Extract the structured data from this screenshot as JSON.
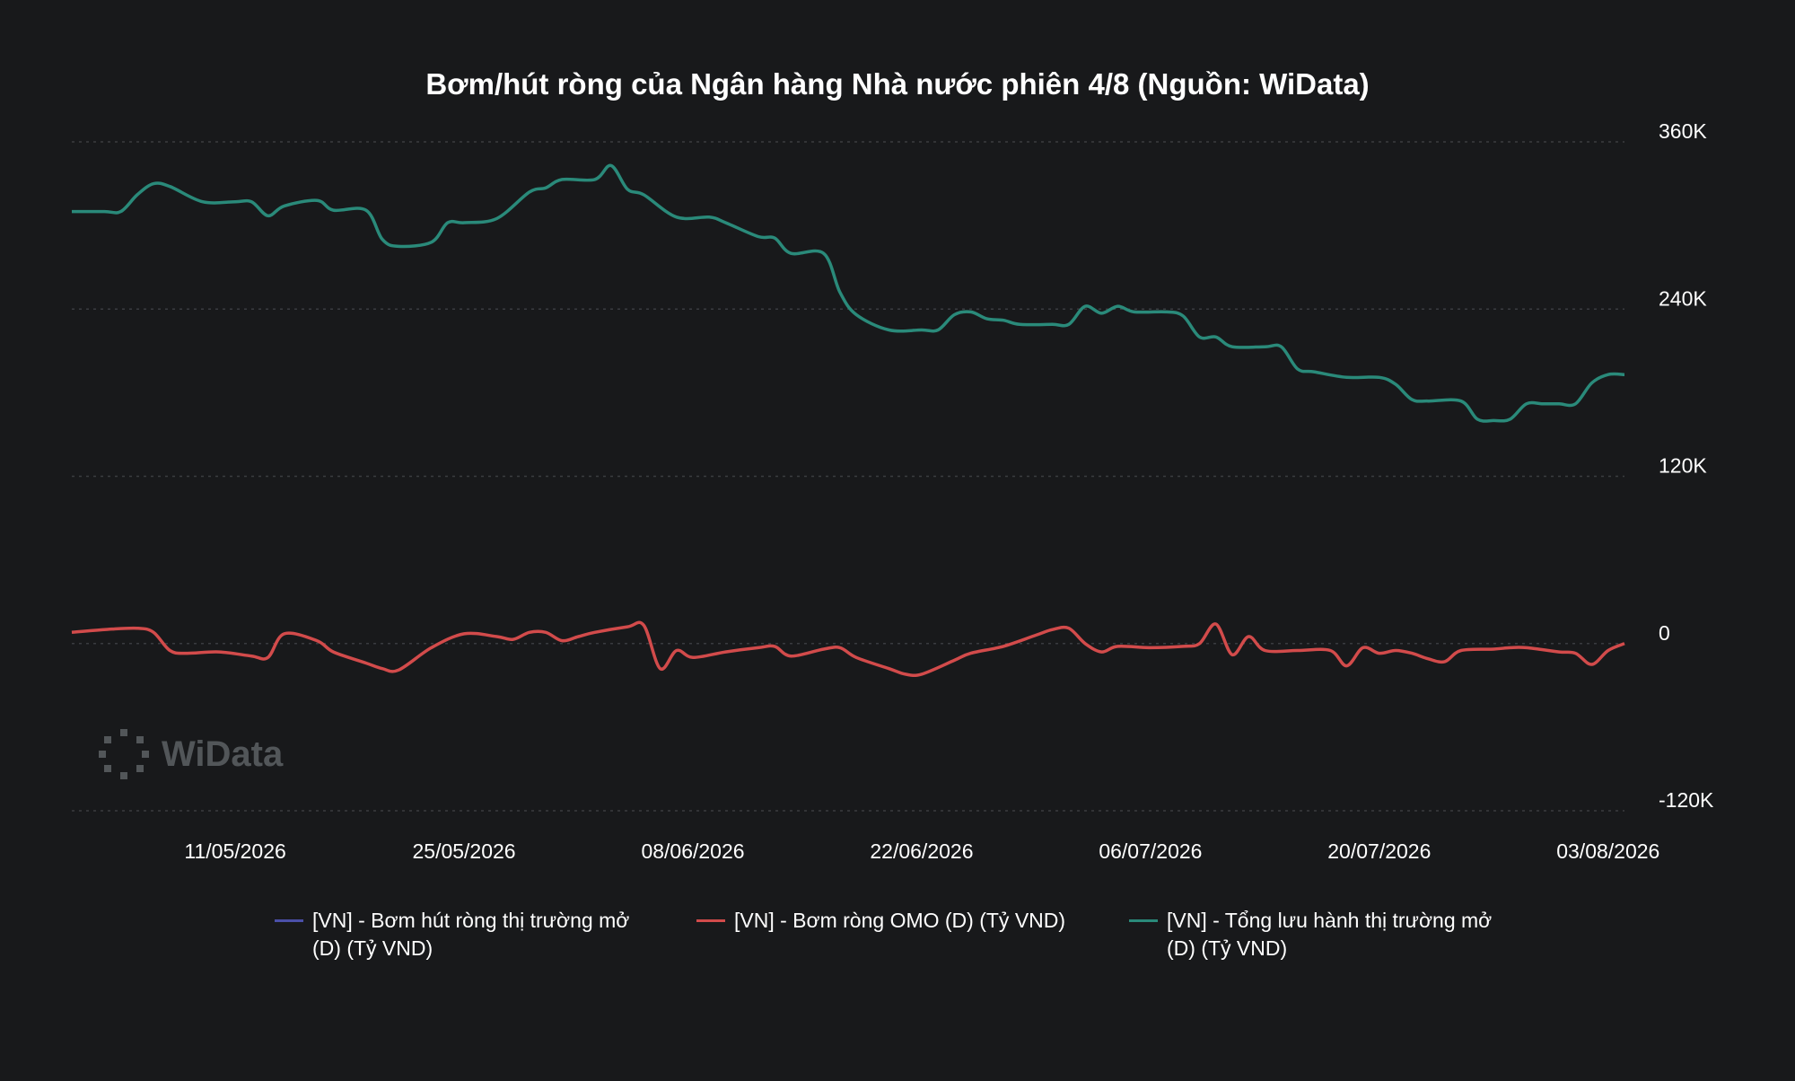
{
  "chart_data": {
    "type": "line",
    "title": "Bơm/hút ròng của Ngân hàng Nhà nước phiên 4/8 (Nguồn: WiData)",
    "xlabel": "",
    "ylabel": "",
    "x_ticks": [
      "11/05/2026",
      "25/05/2026",
      "08/06/2026",
      "22/06/2026",
      "06/07/2026",
      "20/07/2026",
      "03/08/2026"
    ],
    "y_ticks": [
      "360K",
      "240K",
      "120K",
      "0",
      "-120K"
    ],
    "x_range": [
      "2026-05-01",
      "2026-08-04"
    ],
    "ylim": [
      -120000,
      360000
    ],
    "grid": true,
    "legend_position": "bottom",
    "series": [
      {
        "name": "[VN] - Bơm hút ròng thị trường mở\n(D) (Tỷ VND)",
        "color": "#4a4fa8",
        "points": []
      },
      {
        "name": "[VN] - Bơm ròng OMO (D) (Tỷ VND)",
        "color": "#d24b4b",
        "points": [
          [
            "2026-05-01",
            8000
          ],
          [
            "2026-05-03",
            10000
          ],
          [
            "2026-05-05",
            11000
          ],
          [
            "2026-05-06",
            8000
          ],
          [
            "2026-05-07",
            -5000
          ],
          [
            "2026-05-08",
            -7000
          ],
          [
            "2026-05-10",
            -6000
          ],
          [
            "2026-05-12",
            -9000
          ],
          [
            "2026-05-13",
            -10000
          ],
          [
            "2026-05-14",
            7000
          ],
          [
            "2026-05-16",
            2000
          ],
          [
            "2026-05-17",
            -6000
          ],
          [
            "2026-05-19",
            -14000
          ],
          [
            "2026-05-20",
            -18000
          ],
          [
            "2026-05-21",
            -19000
          ],
          [
            "2026-05-23",
            -3000
          ],
          [
            "2026-05-25",
            7000
          ],
          [
            "2026-05-27",
            5000
          ],
          [
            "2026-05-28",
            3000
          ],
          [
            "2026-05-29",
            8000
          ],
          [
            "2026-05-30",
            8000
          ],
          [
            "2026-05-31",
            2000
          ],
          [
            "2026-06-01",
            5000
          ],
          [
            "2026-06-02",
            8000
          ],
          [
            "2026-06-04",
            12000
          ],
          [
            "2026-06-05",
            13000
          ],
          [
            "2026-06-06",
            -18000
          ],
          [
            "2026-06-07",
            -5000
          ],
          [
            "2026-06-08",
            -10000
          ],
          [
            "2026-06-10",
            -6000
          ],
          [
            "2026-06-12",
            -3000
          ],
          [
            "2026-06-13",
            -2000
          ],
          [
            "2026-06-14",
            -9000
          ],
          [
            "2026-06-16",
            -4000
          ],
          [
            "2026-06-17",
            -3000
          ],
          [
            "2026-06-18",
            -10000
          ],
          [
            "2026-06-20",
            -18000
          ],
          [
            "2026-06-21",
            -22000
          ],
          [
            "2026-06-22",
            -22000
          ],
          [
            "2026-06-24",
            -12000
          ],
          [
            "2026-06-25",
            -7000
          ],
          [
            "2026-06-27",
            -2000
          ],
          [
            "2026-06-29",
            6000
          ],
          [
            "2026-06-30",
            10000
          ],
          [
            "2026-07-01",
            11000
          ],
          [
            "2026-07-02",
            0
          ],
          [
            "2026-07-03",
            -6000
          ],
          [
            "2026-07-04",
            -2000
          ],
          [
            "2026-07-06",
            -3000
          ],
          [
            "2026-07-08",
            -2000
          ],
          [
            "2026-07-09",
            0
          ],
          [
            "2026-07-10",
            14000
          ],
          [
            "2026-07-11",
            -8000
          ],
          [
            "2026-07-12",
            5000
          ],
          [
            "2026-07-13",
            -5000
          ],
          [
            "2026-07-15",
            -5000
          ],
          [
            "2026-07-17",
            -5000
          ],
          [
            "2026-07-18",
            -16000
          ],
          [
            "2026-07-19",
            -3000
          ],
          [
            "2026-07-20",
            -7000
          ],
          [
            "2026-07-21",
            -5000
          ],
          [
            "2026-07-22",
            -7000
          ],
          [
            "2026-07-23",
            -11000
          ],
          [
            "2026-07-24",
            -13000
          ],
          [
            "2026-07-25",
            -5000
          ],
          [
            "2026-07-27",
            -4000
          ],
          [
            "2026-07-28",
            -3000
          ],
          [
            "2026-07-29",
            -3000
          ],
          [
            "2026-07-31",
            -6000
          ],
          [
            "2026-08-01",
            -7000
          ],
          [
            "2026-08-02",
            -15000
          ],
          [
            "2026-08-03",
            -5000
          ],
          [
            "2026-08-04",
            0
          ]
        ]
      },
      {
        "name": "[VN] - Tổng lưu hành thị trường mở\n (D) (Tỷ VND)",
        "color": "#2a8a7a",
        "points": [
          [
            "2026-05-01",
            310000
          ],
          [
            "2026-05-03",
            310000
          ],
          [
            "2026-05-04",
            310000
          ],
          [
            "2026-05-05",
            322000
          ],
          [
            "2026-05-06",
            330000
          ],
          [
            "2026-05-07",
            328000
          ],
          [
            "2026-05-09",
            317000
          ],
          [
            "2026-05-11",
            317000
          ],
          [
            "2026-05-12",
            317000
          ],
          [
            "2026-05-13",
            307000
          ],
          [
            "2026-05-14",
            314000
          ],
          [
            "2026-05-16",
            318000
          ],
          [
            "2026-05-17",
            311000
          ],
          [
            "2026-05-19",
            311000
          ],
          [
            "2026-05-20",
            290000
          ],
          [
            "2026-05-21",
            285000
          ],
          [
            "2026-05-23",
            288000
          ],
          [
            "2026-05-24",
            302000
          ],
          [
            "2026-05-25",
            302000
          ],
          [
            "2026-05-27",
            305000
          ],
          [
            "2026-05-29",
            324000
          ],
          [
            "2026-05-30",
            327000
          ],
          [
            "2026-05-31",
            333000
          ],
          [
            "2026-06-02",
            333000
          ],
          [
            "2026-06-03",
            343000
          ],
          [
            "2026-06-04",
            326000
          ],
          [
            "2026-06-05",
            322000
          ],
          [
            "2026-06-07",
            306000
          ],
          [
            "2026-06-09",
            306000
          ],
          [
            "2026-06-10",
            302000
          ],
          [
            "2026-06-12",
            292000
          ],
          [
            "2026-06-13",
            291000
          ],
          [
            "2026-06-14",
            280000
          ],
          [
            "2026-06-16",
            280000
          ],
          [
            "2026-06-17",
            252000
          ],
          [
            "2026-06-18",
            236000
          ],
          [
            "2026-06-20",
            225000
          ],
          [
            "2026-06-22",
            225000
          ],
          [
            "2026-06-23",
            225000
          ],
          [
            "2026-06-24",
            236000
          ],
          [
            "2026-06-25",
            238000
          ],
          [
            "2026-06-26",
            233000
          ],
          [
            "2026-06-27",
            232000
          ],
          [
            "2026-06-28",
            229000
          ],
          [
            "2026-06-30",
            229000
          ],
          [
            "2026-07-01",
            229000
          ],
          [
            "2026-07-02",
            242000
          ],
          [
            "2026-07-03",
            237000
          ],
          [
            "2026-07-04",
            242000
          ],
          [
            "2026-07-05",
            238000
          ],
          [
            "2026-07-07",
            238000
          ],
          [
            "2026-07-08",
            235000
          ],
          [
            "2026-07-09",
            220000
          ],
          [
            "2026-07-10",
            220000
          ],
          [
            "2026-07-11",
            213000
          ],
          [
            "2026-07-13",
            213000
          ],
          [
            "2026-07-14",
            213000
          ],
          [
            "2026-07-15",
            197000
          ],
          [
            "2026-07-16",
            195000
          ],
          [
            "2026-07-18",
            191000
          ],
          [
            "2026-07-20",
            191000
          ],
          [
            "2026-07-21",
            186000
          ],
          [
            "2026-07-22",
            175000
          ],
          [
            "2026-07-23",
            174000
          ],
          [
            "2026-07-25",
            174000
          ],
          [
            "2026-07-26",
            161000
          ],
          [
            "2026-07-27",
            160000
          ],
          [
            "2026-07-28",
            161000
          ],
          [
            "2026-07-29",
            172000
          ],
          [
            "2026-07-30",
            172000
          ],
          [
            "2026-07-31",
            172000
          ],
          [
            "2026-08-01",
            172000
          ],
          [
            "2026-08-02",
            187000
          ],
          [
            "2026-08-03",
            193000
          ],
          [
            "2026-08-04",
            193000
          ]
        ]
      }
    ]
  },
  "watermark": {
    "text": "WiData"
  },
  "colors": {
    "background": "#18191b",
    "grid": "#3a3c40",
    "text": "#ffffff"
  }
}
